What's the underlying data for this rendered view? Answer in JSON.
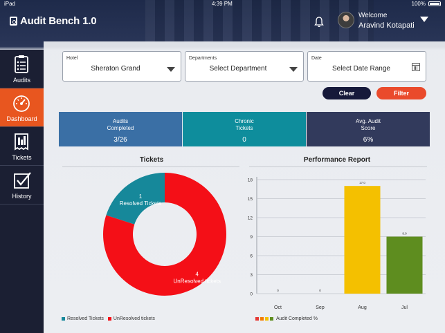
{
  "status_bar": {
    "left": "iPad",
    "time": "4:39 PM",
    "battery": "100%"
  },
  "header": {
    "app_title": "Audit Bench 1.0",
    "welcome_label": "Welcome",
    "user_name": "Aravind Kotapati"
  },
  "sidebar": {
    "items": [
      {
        "label": "Audits",
        "icon": "clipboard-icon",
        "active": false
      },
      {
        "label": "Dashboard",
        "icon": "speedometer-icon",
        "active": true
      },
      {
        "label": "Tickets",
        "icon": "ticket-icon",
        "active": false
      },
      {
        "label": "History",
        "icon": "history-checkmark-icon",
        "active": false
      }
    ]
  },
  "filters": {
    "hotel": {
      "label": "Hotel",
      "value": "Sheraton Grand"
    },
    "departments": {
      "label": "Departments",
      "value": "Select Department"
    },
    "date": {
      "label": "Date",
      "value": "Select Date Range"
    },
    "clear_label": "Clear",
    "filter_label": "Filter"
  },
  "stats": [
    {
      "label": "Audits Completed",
      "value": "3/26",
      "color": "#3a6fa5"
    },
    {
      "label": "Chronic Tickets",
      "value": "0",
      "color": "#0e8d9c"
    },
    {
      "label": "Avg. Audit Score",
      "value": "6%",
      "color": "#323a5c"
    }
  ],
  "tickets_panel": {
    "title": "Tickets"
  },
  "performance_panel": {
    "title": "Performance Report"
  },
  "chart_data": [
    {
      "type": "pie",
      "title": "Tickets",
      "donut": true,
      "slices": [
        {
          "name": "Resolved Tickets",
          "value": 1,
          "count_label": "1",
          "text_label": "Resolved Tickets",
          "color": "#16889a"
        },
        {
          "name": "UnResolved tickets",
          "value": 4,
          "count_label": "4",
          "text_label": "UnResolved tickets",
          "color": "#f40f17"
        }
      ],
      "legend": [
        "Resolved Tickets",
        "UnResolved tickets"
      ],
      "legend_position": "bottom-left"
    },
    {
      "type": "bar",
      "title": "Performance Report",
      "categories": [
        "Oct",
        "Sep",
        "Aug",
        "Jul"
      ],
      "values": [
        0,
        0,
        17.0,
        9.0
      ],
      "value_labels": [
        "0",
        "0",
        "17.0",
        "9.0"
      ],
      "colors": [
        "#e53935",
        "#f57c00",
        "#f4c000",
        "#5e8d1f"
      ],
      "yticks": [
        0,
        3,
        6,
        9,
        12,
        15,
        18
      ],
      "ylim": [
        0,
        18
      ],
      "grid": true,
      "legend_label": "Audit Completed %",
      "legend_swatches": [
        "#e53935",
        "#f57c00",
        "#f4c000",
        "#5e8d1f"
      ],
      "legend_position": "bottom-left"
    }
  ]
}
